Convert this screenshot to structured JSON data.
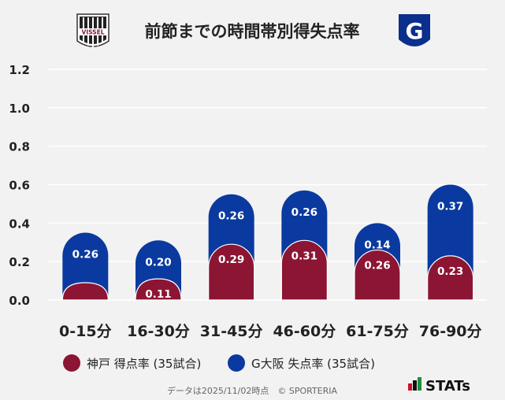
{
  "chart_data": {
    "type": "bar",
    "title": "前節までの時間帯別得失点率",
    "categories": [
      "0-15分",
      "16-30分",
      "31-45分",
      "46-60分",
      "61-75分",
      "76-90分"
    ],
    "series": [
      {
        "name": "神戸 得点率 (35試合)",
        "values": [
          0.09,
          0.11,
          0.29,
          0.31,
          0.26,
          0.23
        ],
        "color": "#8c1533",
        "labels": [
          "",
          "0.11",
          "0.29",
          "0.31",
          "0.26",
          "0.23"
        ]
      },
      {
        "name": "G大阪 失点率 (35試合)",
        "values": [
          0.26,
          0.2,
          0.26,
          0.26,
          0.14,
          0.37
        ],
        "color": "#0a3aa0",
        "labels": [
          "0.26",
          "0.20",
          "0.26",
          "0.26",
          "0.14",
          "0.37"
        ]
      }
    ],
    "yticks": [
      "0.0",
      "0.2",
      "0.4",
      "0.6",
      "0.8",
      "1.0",
      "1.2"
    ],
    "ylim": [
      0,
      1.2
    ],
    "grid": true,
    "legend_position": "bottom"
  },
  "logos": {
    "home": "VISSEL",
    "away": "G"
  },
  "footer": {
    "note": "データは2025/11/02時点　© SPORTERIA",
    "brand": "STATs"
  },
  "colors": {
    "background": "#f2f2f2",
    "grid": "#ffffff",
    "text": "#222222"
  }
}
